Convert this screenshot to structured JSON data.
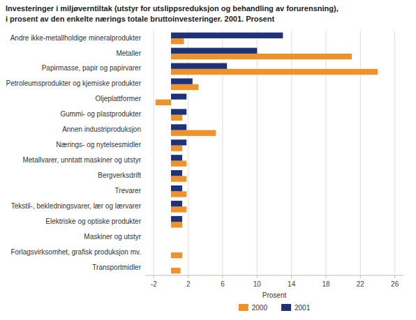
{
  "chart_data": {
    "type": "bar",
    "orientation": "horizontal",
    "title": "Investeringer i miljøverntiltak (utstyr for utslippsreduksjon og behandling av forurensning),",
    "subtitle": "i prosent av den enkelte nærings totale bruttoinvesteringer. 2001. Prosent",
    "categories": [
      "Transportmidler",
      "Forlagsvirksomhet, grafisk produksjon mv.",
      "Maskiner og utstyr",
      "Elektriske og optiske produkter",
      "Tekstil-, bekledningsvarer, lær og lærvarer",
      "Trevarer",
      "Bergverksdrift",
      "Metallvarer, unntatt maskiner og utstyr",
      "Nærings- og nytelsesmidler",
      "Annen industriproduksjon",
      "Gummi- og plastprodukter",
      "Oljeplattformer",
      "Petroleumsprodukter og kjemiske produkter",
      "Papirmasse, papir og papirvarer",
      "Metaller",
      "Andre ikke-metallholdige mineralprodukter"
    ],
    "series": [
      {
        "name": "2000",
        "color": "#f0922a",
        "values": [
          1.1,
          1.3,
          0.0,
          1.3,
          1.8,
          1.8,
          1.8,
          1.8,
          1.3,
          5.2,
          1.3,
          -1.8,
          3.2,
          24.0,
          21.0,
          1.5
        ]
      },
      {
        "name": "2001",
        "color": "#1f3278",
        "values": [
          0.0,
          0.0,
          0.0,
          1.3,
          1.3,
          1.3,
          1.3,
          1.3,
          1.8,
          1.8,
          1.8,
          1.8,
          2.5,
          6.5,
          10.0,
          13.0
        ]
      }
    ],
    "xlabel": "Prosent",
    "xlim": [
      -3,
      27
    ],
    "xticks": [
      -2,
      2,
      6,
      10,
      14,
      18,
      22,
      26
    ],
    "grid": true,
    "legend": "bottom"
  }
}
